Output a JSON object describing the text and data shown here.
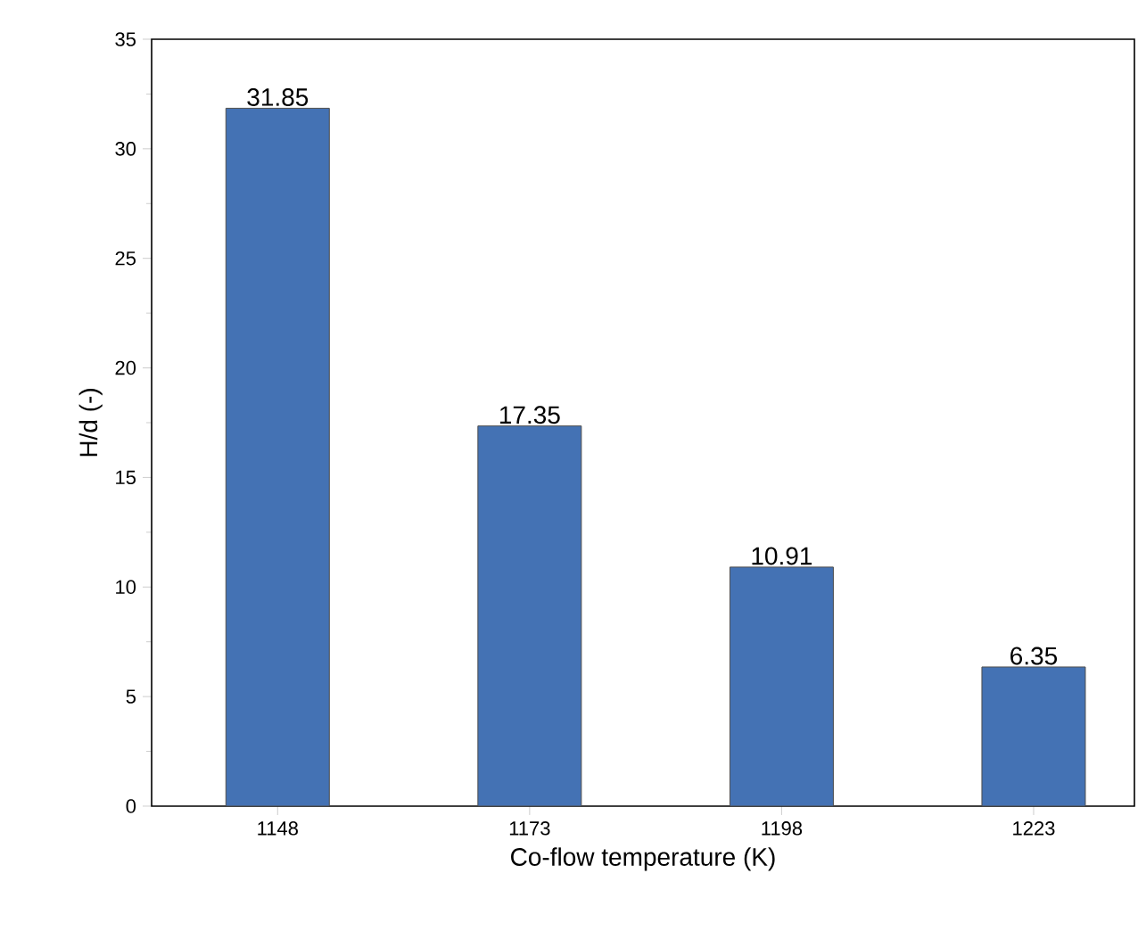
{
  "chart_data": {
    "type": "bar",
    "xlabel": "Co-flow temperature (K)",
    "ylabel": "H/d (-)",
    "categories": [
      "1148",
      "1173",
      "1198",
      "1223"
    ],
    "values": [
      31.85,
      17.35,
      10.91,
      6.35
    ],
    "color": "#4472b4",
    "ylim": [
      0,
      35
    ],
    "yticks": [
      0,
      5,
      10,
      15,
      20,
      25,
      30,
      35
    ],
    "data_labels": true
  }
}
